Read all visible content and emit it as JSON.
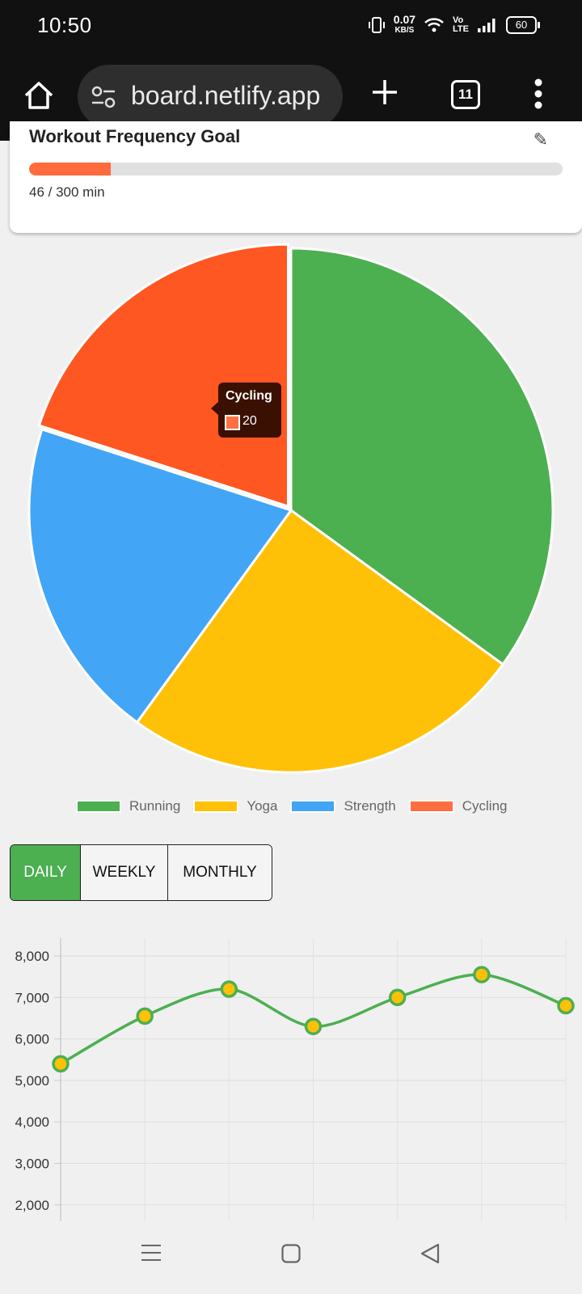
{
  "status_bar": {
    "time": "10:50",
    "net_speed": "0.07",
    "net_unit": "KB/S",
    "lte_top": "Vo",
    "lte_bottom": "LTE",
    "battery": "60"
  },
  "browser": {
    "url": "board.netlify.app",
    "tab_count": "11",
    "icons": [
      "home-icon",
      "site-settings-icon",
      "plus-icon",
      "tab-switcher-icon",
      "more-vert-icon"
    ]
  },
  "goal_card": {
    "title": "Workout Frequency Goal",
    "progress_current": 46,
    "progress_target": 300,
    "progress_text": "46 / 300 min",
    "fill_color": "#ff6b3d"
  },
  "chart_data": [
    {
      "type": "pie",
      "categories": [
        "Running",
        "Yoga",
        "Strength",
        "Cycling"
      ],
      "values": [
        35,
        25,
        20,
        20
      ],
      "colors": [
        "#4caf50",
        "#ffc107",
        "#42a5f5",
        "#ff5722"
      ],
      "legend": "bottom",
      "tooltip": {
        "label": "Cycling",
        "value": "20"
      }
    },
    {
      "type": "line",
      "x": [
        "1",
        "2",
        "3",
        "4",
        "5",
        "6",
        "7"
      ],
      "series": [
        {
          "values": [
            5400,
            6550,
            7200,
            6300,
            7000,
            7550,
            6800
          ]
        }
      ],
      "ylim": [
        2000,
        8000
      ],
      "yticks": [
        "8,000",
        "7,000",
        "6,000",
        "5,000",
        "4,000",
        "3,000",
        "2,000"
      ],
      "grid": true,
      "line_color": "#4caf50",
      "point_color": "#ffc107"
    }
  ],
  "range_tabs": [
    "DAILY",
    "WEEKLY",
    "MONTHLY"
  ],
  "active_tab": "DAILY",
  "nav_bar": {
    "icons": [
      "recents-icon",
      "home-square-icon",
      "back-icon"
    ]
  }
}
